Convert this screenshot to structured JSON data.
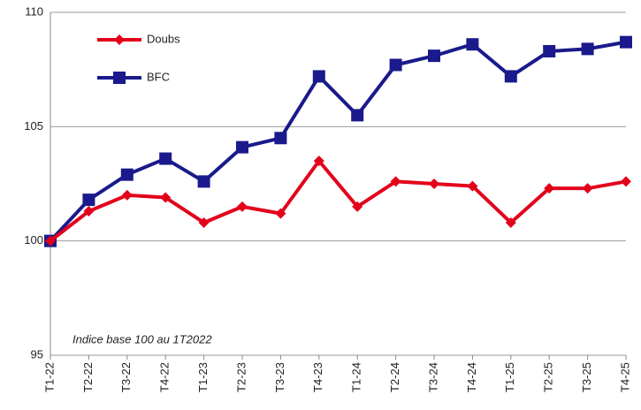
{
  "chart_data": {
    "type": "line",
    "categories": [
      "T1-22",
      "T2-22",
      "T3-22",
      "T4-22",
      "T1-23",
      "T2-23",
      "T3-23",
      "T4-23",
      "T1-24",
      "T2-24",
      "T3-24",
      "T4-24",
      "T1-25",
      "T2-25",
      "T3-25",
      "T4-25"
    ],
    "series": [
      {
        "name": "Doubs",
        "color": "#e3001b",
        "marker": "diamond",
        "values": [
          100,
          101.3,
          102.0,
          101.9,
          100.8,
          101.5,
          101.2,
          103.5,
          101.5,
          102.6,
          102.5,
          102.4,
          100.8,
          102.3,
          102.3,
          102.6
        ]
      },
      {
        "name": "BFC",
        "color": "#1a1a8c",
        "marker": "square",
        "values": [
          100,
          101.8,
          102.9,
          103.6,
          102.6,
          104.1,
          104.5,
          107.2,
          105.5,
          107.7,
          108.1,
          108.6,
          107.2,
          108.3,
          108.4,
          108.7
        ]
      }
    ],
    "ylim": [
      95,
      110
    ],
    "yticks": [
      95,
      100,
      105,
      110
    ],
    "grid": true,
    "annotation": "Indice base 100 au 1T2022"
  }
}
